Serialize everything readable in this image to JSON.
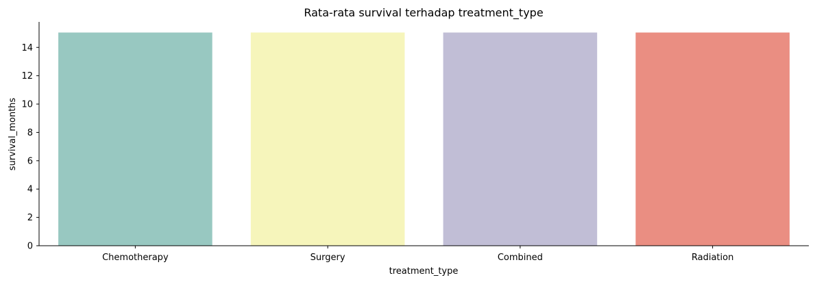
{
  "chart_data": {
    "type": "bar",
    "title": "Rata-rata survival terhadap treatment_type",
    "xlabel": "treatment_type",
    "ylabel": "survival_months",
    "categories": [
      "Chemotherapy",
      "Surgery",
      "Combined",
      "Radiation"
    ],
    "values": [
      15.05,
      15.05,
      15.05,
      15.05
    ],
    "colors": [
      "#98c8c1",
      "#f6f5bb",
      "#c1bed6",
      "#ea8e82"
    ],
    "ylim": [
      0,
      15.8
    ],
    "yticks": [
      0,
      2,
      4,
      6,
      8,
      10,
      12,
      14
    ],
    "grid": false,
    "legend": "none"
  }
}
